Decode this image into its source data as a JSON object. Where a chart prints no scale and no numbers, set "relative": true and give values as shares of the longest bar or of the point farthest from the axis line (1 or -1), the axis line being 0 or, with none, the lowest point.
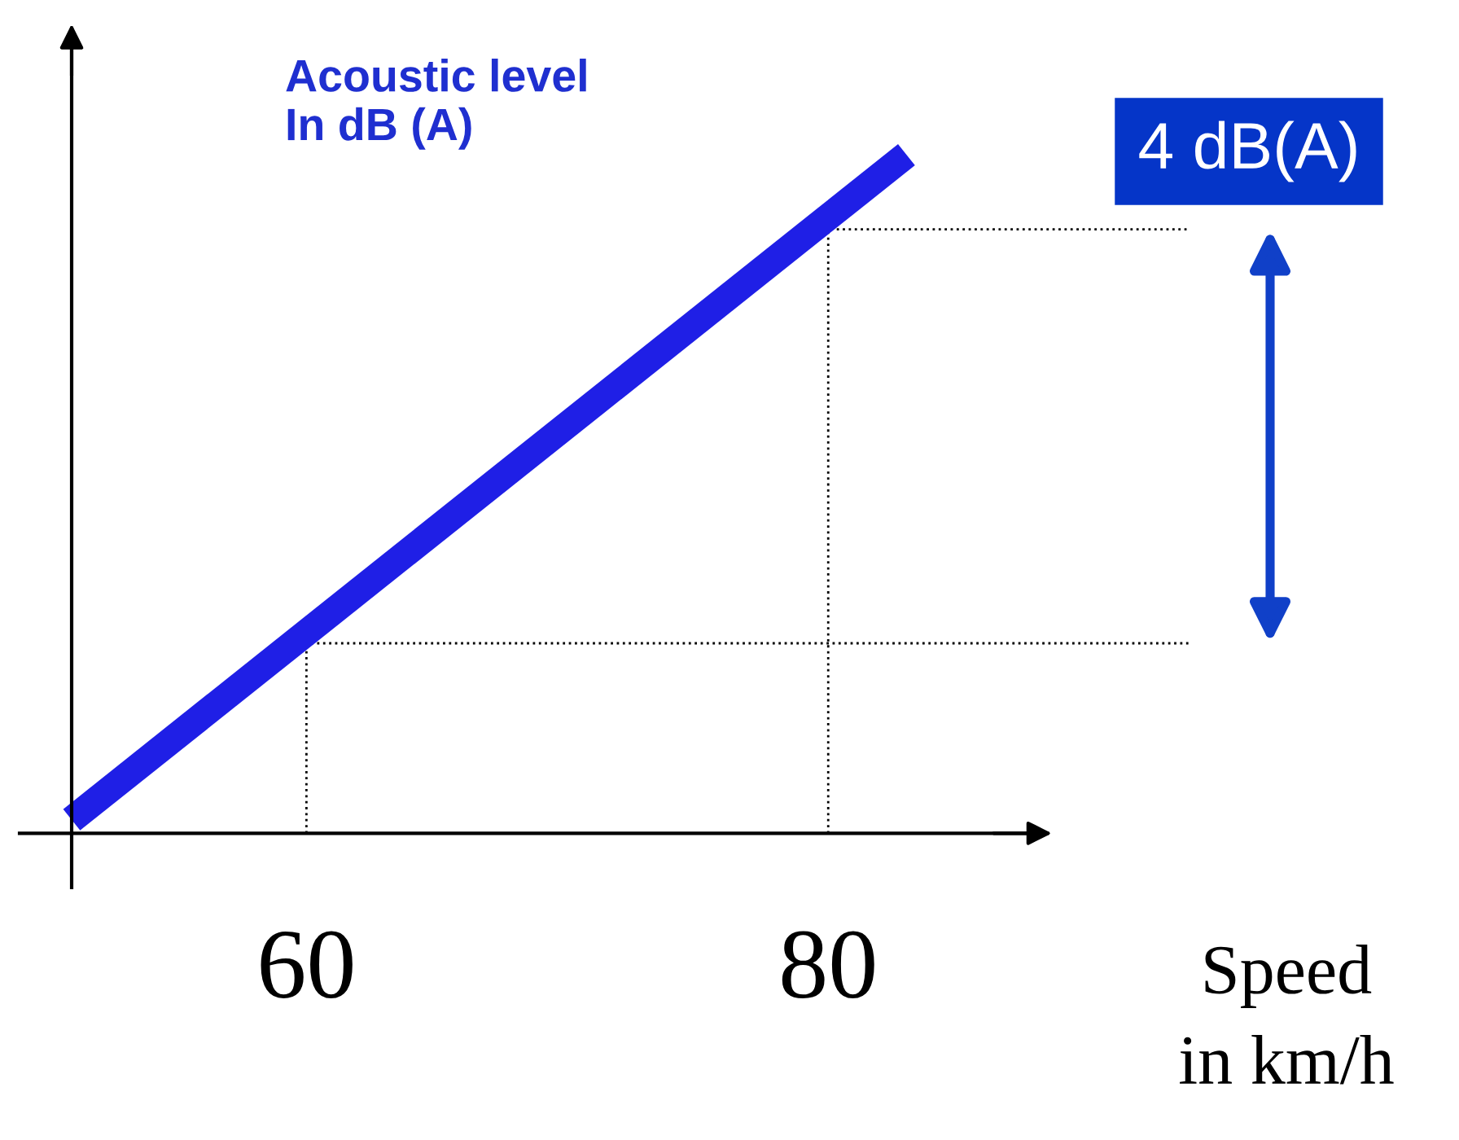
{
  "chart_data": {
    "type": "line",
    "relative": true,
    "ylabel": "Acoustic level\nIn dB (A)",
    "xlabel": "Speed\nin km/h",
    "xlim": [
      51,
      88.2
    ],
    "xticks": [
      60,
      80
    ],
    "series": [
      {
        "color": "#1f1fe6",
        "x": [
          51,
          83
        ],
        "values": [
          0.02,
          1
        ]
      }
    ],
    "ref_lines": [
      {
        "axis": "x",
        "value": 60,
        "color": "#000000",
        "line_style": "dotted"
      },
      {
        "axis": "x",
        "value": 80,
        "color": "#000000",
        "line_style": "dotted"
      },
      {
        "axis": "y",
        "value": 0.28,
        "color": "#000000",
        "line_style": "dotted"
      },
      {
        "axis": "y",
        "value": 0.89,
        "color": "#000000",
        "line_style": "dotted"
      }
    ],
    "annotations": [
      "4 dB(A)"
    ],
    "grid": false,
    "marker": "none",
    "line_style": "solid"
  }
}
